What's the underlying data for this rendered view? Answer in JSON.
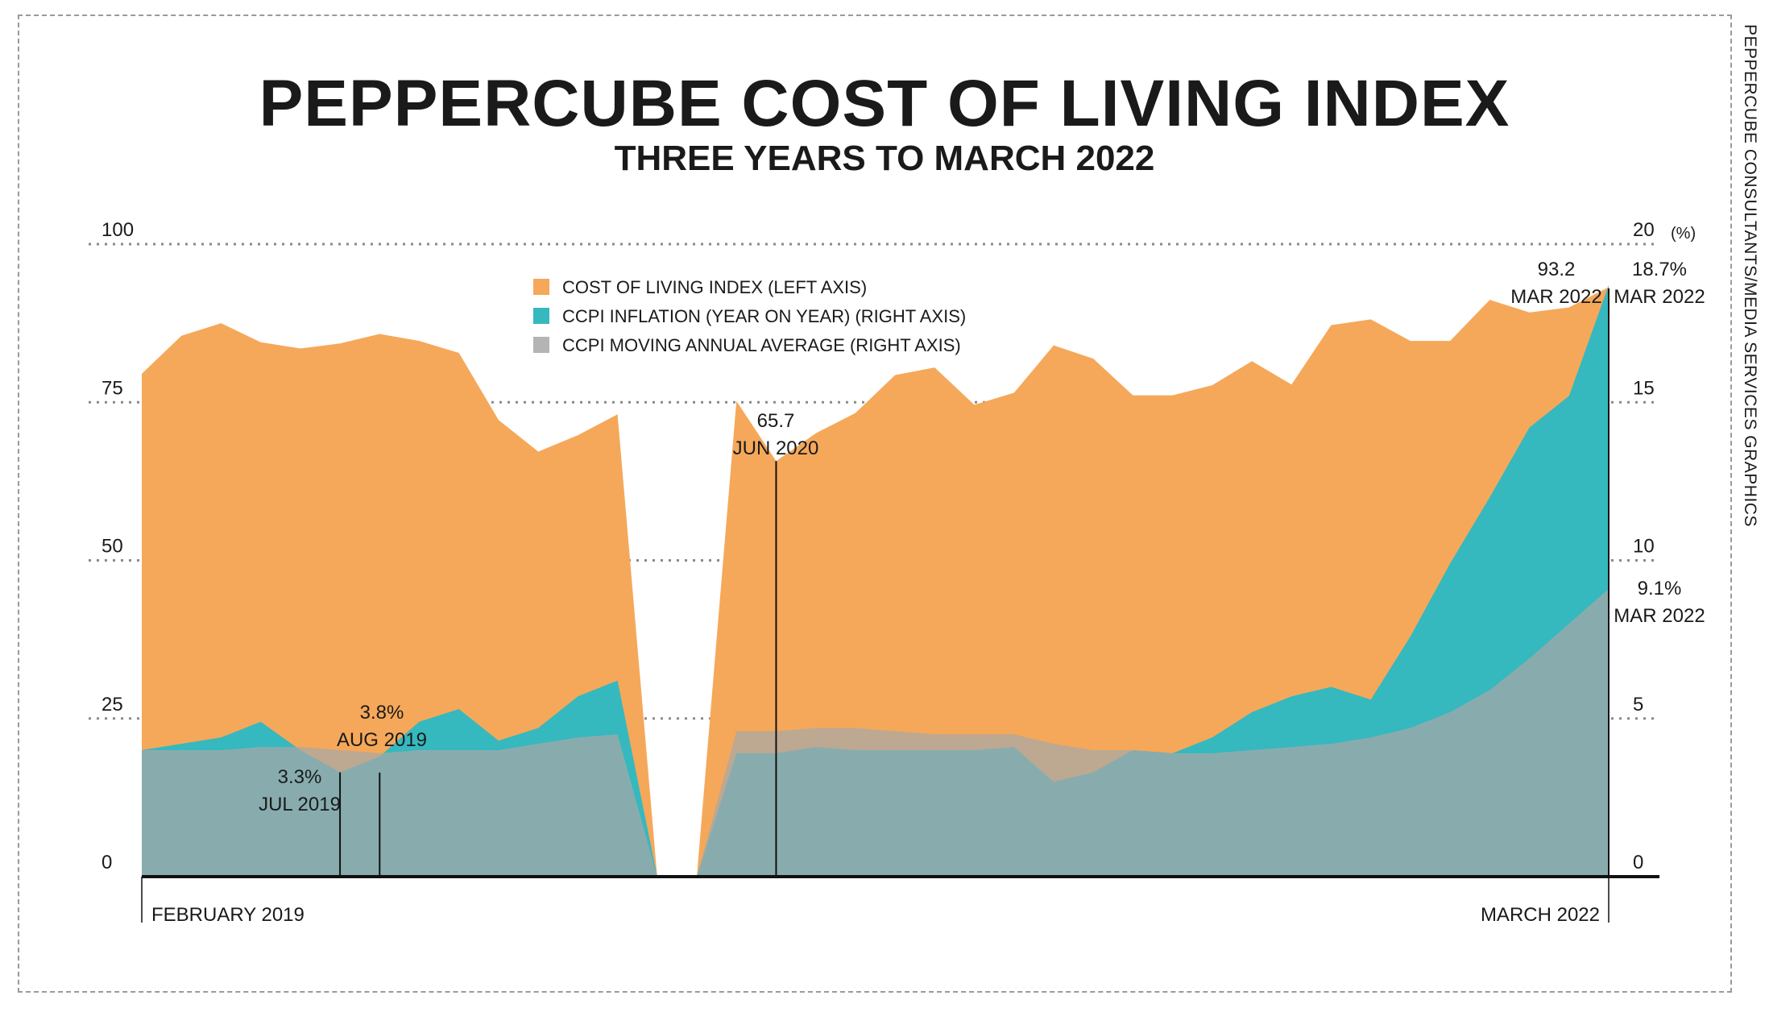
{
  "title": "PEPPERCUBE COST OF LIVING INDEX",
  "subtitle": "THREE YEARS TO MARCH 2022",
  "credit": "PEPPERCUBE CONSULTANTS/MEDIA SERVICES GRAPHICS",
  "right_unit": "(%)",
  "colors": {
    "index": "#f5a85a",
    "inflation": "#36b8bf",
    "average": "#8c8c8c",
    "average_fill": "#a7a7a7"
  },
  "chart_data": {
    "type": "area",
    "left_axis": {
      "ticks": [
        "100",
        "75",
        "50",
        "25",
        "0"
      ],
      "values": [
        100,
        75,
        50,
        25,
        0
      ],
      "ylim": [
        0,
        100
      ]
    },
    "right_axis": {
      "ticks": [
        "20",
        "15",
        "10",
        "5",
        "0"
      ],
      "values": [
        20,
        15,
        10,
        5,
        0
      ],
      "ylim": [
        0,
        20
      ]
    },
    "grid": "dotted",
    "x_labels": {
      "start": "FEBRUARY 2019",
      "end": "MARCH 2022"
    },
    "legend_position": "top-center",
    "series": [
      {
        "name": "COST OF LIVING INDEX (LEFT AXIS)",
        "axis": "left",
        "segments": [
          [
            [
              0,
              79.5
            ],
            [
              1,
              85.5
            ],
            [
              2,
              87.5
            ],
            [
              3,
              84.5
            ],
            [
              4,
              83.5
            ],
            [
              5,
              84.3
            ],
            [
              6,
              85.8
            ],
            [
              7,
              84.7
            ],
            [
              8,
              82.8
            ],
            [
              9,
              72.2
            ],
            [
              10,
              67.2
            ],
            [
              11,
              69.8
            ],
            [
              12,
              73.1
            ],
            [
              13,
              0
            ]
          ],
          [
            [
              14,
              0
            ],
            [
              15,
              75.2
            ],
            [
              16,
              65.7
            ],
            [
              17,
              70.1
            ],
            [
              18,
              73.3
            ],
            [
              19,
              79.3
            ],
            [
              20,
              80.5
            ],
            [
              21,
              74.6
            ],
            [
              22,
              76.5
            ],
            [
              23,
              84
            ],
            [
              24,
              81.9
            ],
            [
              25,
              76.1
            ],
            [
              26,
              76.1
            ],
            [
              27,
              77.7
            ],
            [
              28,
              81.5
            ],
            [
              29,
              77.8
            ],
            [
              30,
              87.2
            ],
            [
              31,
              88.1
            ],
            [
              32,
              84.7
            ],
            [
              33,
              84.7
            ],
            [
              34,
              91.2
            ],
            [
              35,
              89.2
            ],
            [
              36,
              90
            ],
            [
              37,
              93.2
            ]
          ]
        ]
      },
      {
        "name": "CCPI INFLATION (YEAR ON YEAR) (RIGHT AXIS)",
        "axis": "right",
        "segments": [
          [
            [
              0,
              4
            ],
            [
              1,
              4.2
            ],
            [
              2,
              4.4
            ],
            [
              3,
              4.9
            ],
            [
              4,
              4
            ],
            [
              5,
              3.3
            ],
            [
              6,
              3.8
            ],
            [
              7,
              4.9
            ],
            [
              8,
              5.3
            ],
            [
              9,
              4.3
            ],
            [
              10,
              4.7
            ],
            [
              11,
              5.7
            ],
            [
              12,
              6.2
            ],
            [
              13,
              0
            ]
          ],
          [
            [
              14,
              0
            ],
            [
              15,
              3.9
            ],
            [
              16,
              3.9
            ],
            [
              17,
              4.1
            ],
            [
              18,
              4
            ],
            [
              19,
              4
            ],
            [
              20,
              4
            ],
            [
              21,
              4
            ],
            [
              22,
              4.1
            ],
            [
              23,
              3
            ],
            [
              24,
              3.3
            ],
            [
              25,
              4
            ],
            [
              26,
              3.9
            ],
            [
              27,
              4.4
            ],
            [
              28,
              5.2
            ],
            [
              29,
              5.7
            ],
            [
              30,
              6
            ],
            [
              31,
              5.6
            ],
            [
              32,
              7.6
            ],
            [
              33,
              9.9
            ],
            [
              34,
              12
            ],
            [
              35,
              14.2
            ],
            [
              36,
              15.2
            ],
            [
              37,
              18.7
            ]
          ]
        ]
      },
      {
        "name": "CCPI MOVING ANNUAL AVERAGE (RIGHT AXIS)",
        "axis": "right",
        "segments": [
          [
            [
              0,
              4
            ],
            [
              1,
              4
            ],
            [
              2,
              4
            ],
            [
              3,
              4.1
            ],
            [
              4,
              4.1
            ],
            [
              5,
              4
            ],
            [
              6,
              3.9
            ],
            [
              7,
              4
            ],
            [
              8,
              4
            ],
            [
              9,
              4
            ],
            [
              10,
              4.2
            ],
            [
              11,
              4.4
            ],
            [
              12,
              4.5
            ],
            [
              13,
              0
            ]
          ],
          [
            [
              14,
              0
            ],
            [
              15,
              4.6
            ],
            [
              16,
              4.6
            ],
            [
              17,
              4.7
            ],
            [
              18,
              4.7
            ],
            [
              19,
              4.6
            ],
            [
              20,
              4.5
            ],
            [
              21,
              4.5
            ],
            [
              22,
              4.5
            ],
            [
              23,
              4.2
            ],
            [
              24,
              4
            ],
            [
              25,
              4
            ],
            [
              26,
              3.9
            ],
            [
              27,
              3.9
            ],
            [
              28,
              4
            ],
            [
              29,
              4.1
            ],
            [
              30,
              4.2
            ],
            [
              31,
              4.4
            ],
            [
              32,
              4.7
            ],
            [
              33,
              5.2
            ],
            [
              34,
              5.9
            ],
            [
              35,
              6.9
            ],
            [
              36,
              8
            ],
            [
              37,
              9.1
            ]
          ]
        ]
      }
    ],
    "annotations": [
      {
        "value": "3.3%",
        "date": "JUL 2019",
        "x": 5,
        "axis": "right",
        "y": 3.3
      },
      {
        "value": "3.8%",
        "date": "AUG 2019",
        "x": 6,
        "axis": "right",
        "y": 3.8
      },
      {
        "value": "65.7",
        "date": "JUN 2020",
        "x": 16,
        "axis": "left",
        "y": 65.7
      },
      {
        "value": "93.2",
        "date": "MAR 2022",
        "x": 37,
        "axis": "left",
        "y": 93.2
      },
      {
        "value": "18.7%",
        "date": "MAR 2022",
        "x": 37,
        "axis": "right",
        "y": 18.7
      },
      {
        "value": "9.1%",
        "date": "MAR 2022",
        "x": 37,
        "axis": "right",
        "y": 9.1
      }
    ]
  }
}
